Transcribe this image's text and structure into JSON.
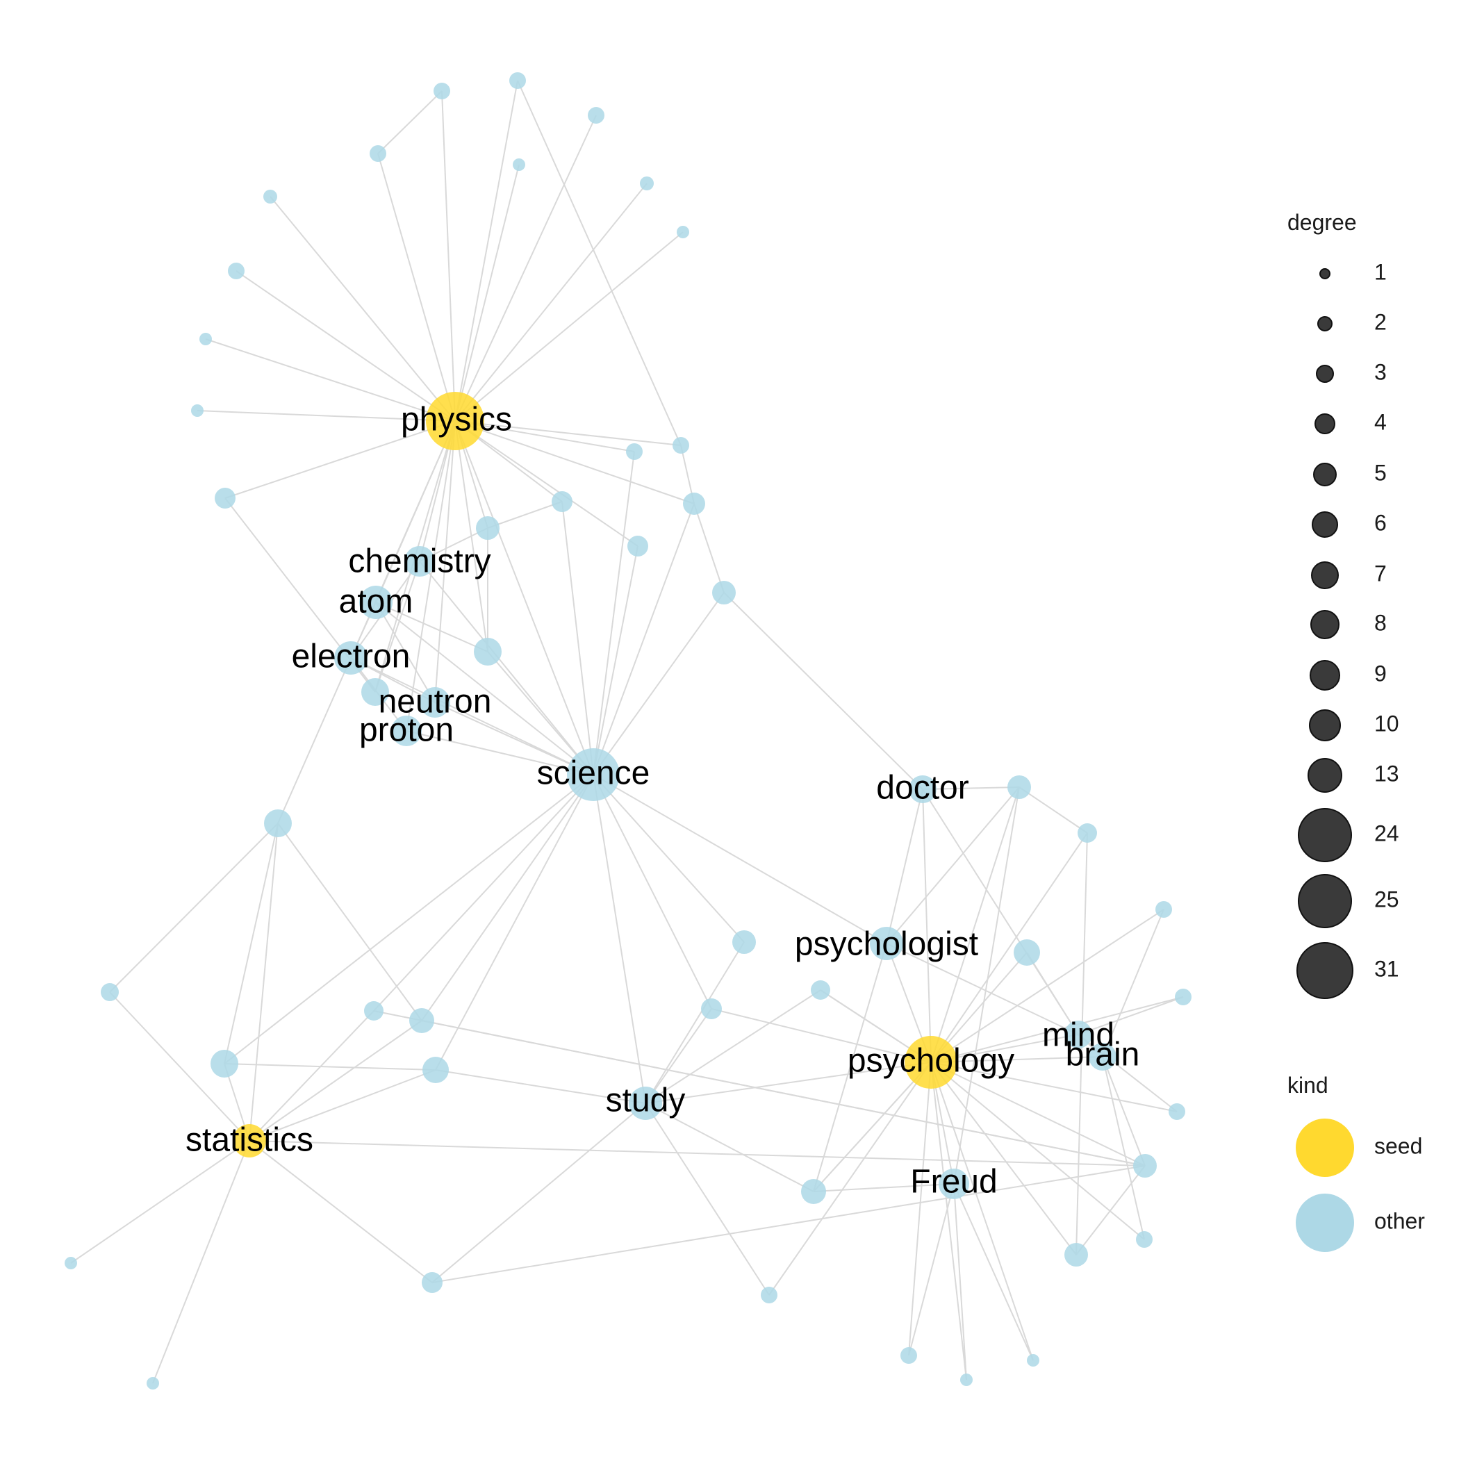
{
  "colors": {
    "seed": "#FFD92F",
    "other": "#ADD8E6",
    "edge": "#D9D9D9"
  },
  "legend": {
    "degree_title": "degree",
    "degree_entries": [
      "1",
      "2",
      "3",
      "4",
      "5",
      "6",
      "7",
      "8",
      "9",
      "10",
      "13",
      "24",
      "25",
      "31"
    ],
    "kind_title": "kind",
    "kind_entries": [
      "seed",
      "other"
    ]
  },
  "labels": {
    "physics": "physics",
    "chemistry": "chemistry",
    "atom": "atom",
    "electron": "electron",
    "neutron": "neutron",
    "proton": "proton",
    "science": "science",
    "doctor": "doctor",
    "psychologist": "psychologist",
    "mind": "mind",
    "brain": "brain",
    "psychology": "psychology",
    "study": "study",
    "statistics": "statistics",
    "Freud": "Freud"
  },
  "kinds": {
    "physics": "seed",
    "psychology": "seed",
    "statistics": "seed"
  }
}
